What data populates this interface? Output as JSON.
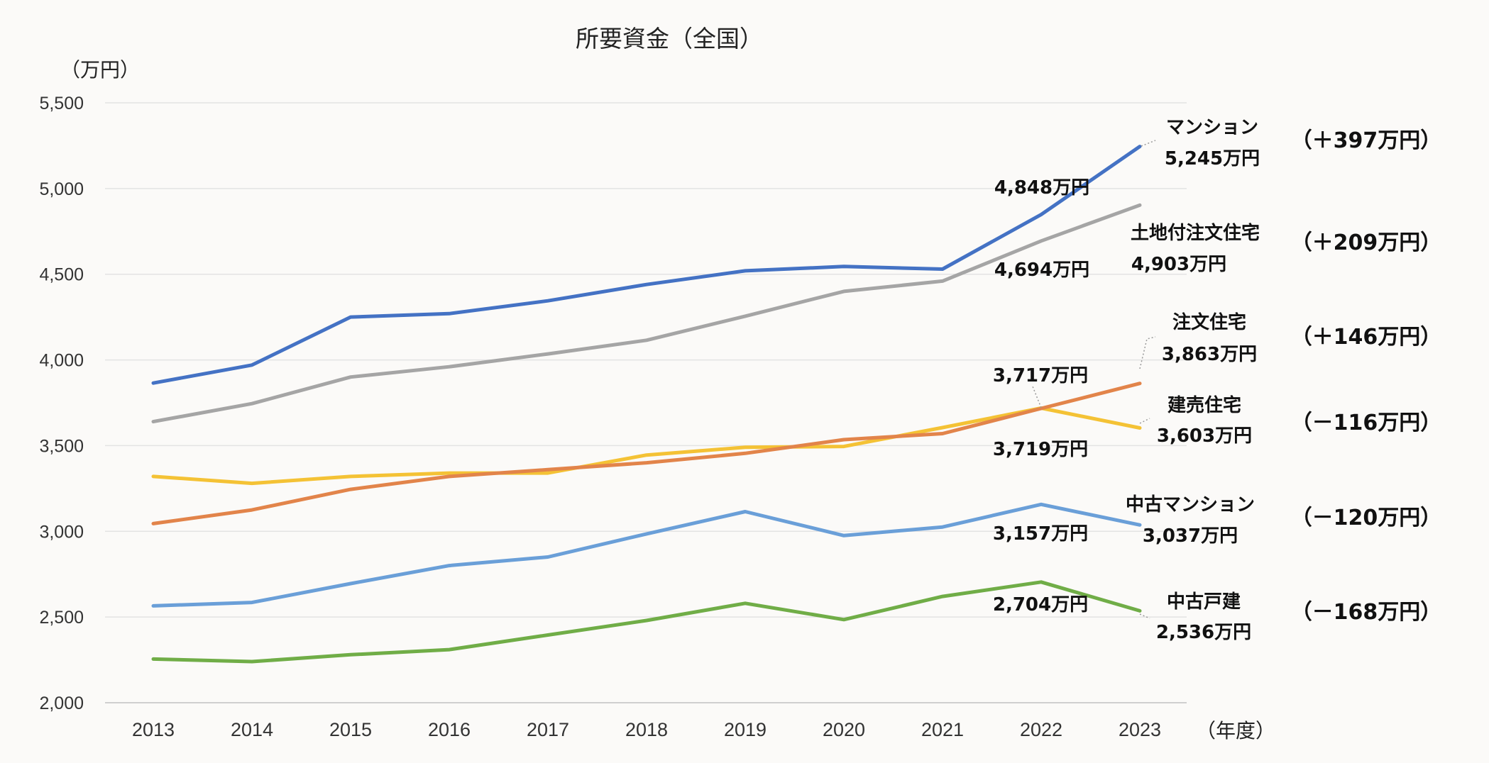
{
  "chart_data": {
    "type": "line",
    "title": "所要資金（全国）",
    "ylabel": "（万円）",
    "xlabel": "（年度）",
    "ylim": [
      2000,
      5500
    ],
    "yticks": [
      2000,
      2500,
      3000,
      3500,
      4000,
      4500,
      5000,
      5500
    ],
    "ytick_labels": [
      "2,000",
      "2,500",
      "3,000",
      "3,500",
      "4,000",
      "4,500",
      "5,000",
      "5,500"
    ],
    "x": [
      "2013",
      "2014",
      "2015",
      "2016",
      "2017",
      "2018",
      "2019",
      "2020",
      "2021",
      "2022",
      "2023"
    ],
    "grid": true,
    "series": [
      {
        "name": "マンション",
        "color": "#4472c4",
        "values": [
          3865,
          3970,
          4250,
          4270,
          4345,
          4440,
          4520,
          4545,
          4530,
          4848,
          5245
        ]
      },
      {
        "name": "土地付注文住宅",
        "color": "#a5a5a5",
        "values": [
          3640,
          3745,
          3900,
          3960,
          4035,
          4115,
          4255,
          4400,
          4460,
          4694,
          4903
        ]
      },
      {
        "name": "注文住宅",
        "color": "#e2844a",
        "values": [
          3045,
          3125,
          3245,
          3320,
          3360,
          3400,
          3455,
          3535,
          3570,
          3717,
          3863
        ]
      },
      {
        "name": "建売住宅",
        "color": "#f4c235",
        "values": [
          3320,
          3280,
          3320,
          3340,
          3340,
          3445,
          3490,
          3495,
          3605,
          3719,
          3603
        ]
      },
      {
        "name": "中古マンション",
        "color": "#6a9fd8",
        "values": [
          2565,
          2585,
          2695,
          2800,
          2850,
          2985,
          3115,
          2975,
          3025,
          3157,
          3037
        ]
      },
      {
        "name": "中古戸建",
        "color": "#70ad47",
        "values": [
          2255,
          2240,
          2280,
          2310,
          2395,
          2480,
          2580,
          2485,
          2620,
          2704,
          2536
        ]
      }
    ],
    "annotations": {
      "mansion_2022": "4,848万円",
      "mansion_2023": "5,245万円",
      "tochi_2022": "4,694万円",
      "tochi_2023": "4,903万円",
      "chumon_2022": "3,717万円",
      "chumon_2023": "3,863万円",
      "tateuri_2022": "3,719万円",
      "tateuri_2023": "3,603万円",
      "chuko_mansion_2022": "3,157万円",
      "chuko_mansion_2023": "3,037万円",
      "chuko_kodate_2022": "2,704万円",
      "chuko_kodate_2023": "2,536万円"
    },
    "series_labels": {
      "mansion": "マンション",
      "tochi": "土地付注文住宅",
      "chumon": "注文住宅",
      "tateuri": "建売住宅",
      "chuko_mansion": "中古マンション",
      "chuko_kodate": "中古戸建"
    },
    "changes": {
      "mansion": "（＋397万円）",
      "tochi": "（＋209万円）",
      "chumon": "（＋146万円）",
      "tateuri": "（－116万円）",
      "chuko_mansion": "（－120万円）",
      "chuko_kodate": "（－168万円）"
    }
  }
}
